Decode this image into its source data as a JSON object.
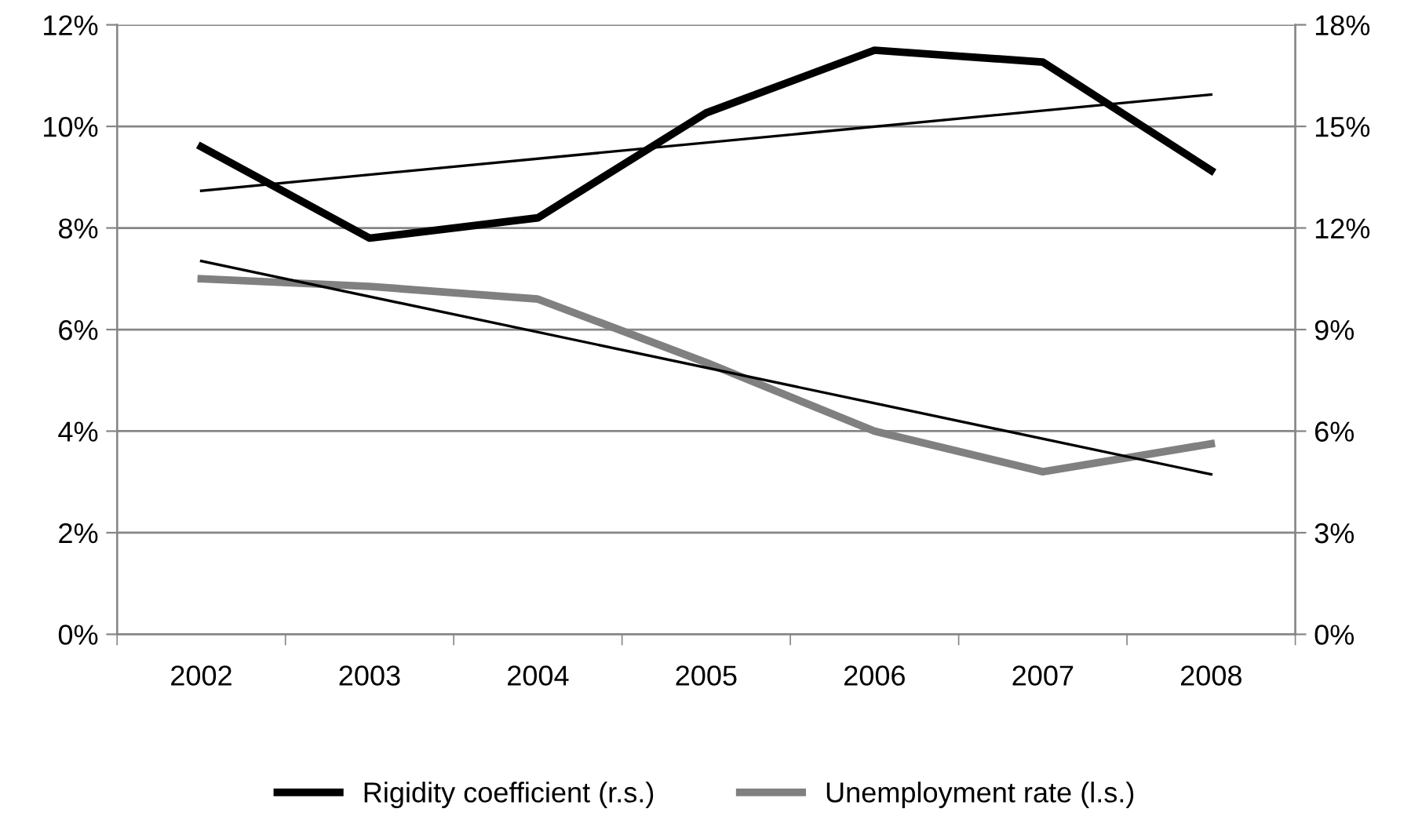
{
  "chart_data": {
    "type": "line",
    "categories": [
      "2002",
      "2003",
      "2004",
      "2005",
      "2006",
      "2007",
      "2008"
    ],
    "series": [
      {
        "name": "Rigidity coefficient (r.s.)",
        "color": "#000000",
        "axis": "y2",
        "values": [
          14.4,
          11.7,
          12.3,
          15.4,
          17.25,
          16.9,
          13.7
        ]
      },
      {
        "name": "Unemployment rate (l.s.)",
        "color": "#808080",
        "values": [
          7.0,
          6.85,
          6.6,
          5.35,
          4.0,
          3.2,
          3.75
        ]
      },
      {
        "color": "#000000",
        "axis": "y2",
        "values": [
          13.1,
          null,
          null,
          null,
          null,
          null,
          15.94
        ]
      },
      {
        "color": "#000000",
        "values": [
          7.35,
          null,
          null,
          null,
          null,
          null,
          3.15
        ]
      }
    ],
    "ylim": [
      0,
      12
    ],
    "yticks": [
      {
        "value": 0,
        "label": "0%"
      },
      {
        "value": 2,
        "label": "2%"
      },
      {
        "value": 4,
        "label": "4%"
      },
      {
        "value": 6,
        "label": "6%"
      },
      {
        "value": 8,
        "label": "8%"
      },
      {
        "value": 10,
        "label": "10%"
      },
      {
        "value": 12,
        "label": "12%"
      }
    ],
    "y2lim": [
      0,
      18
    ],
    "y2ticks": [
      {
        "value": 0,
        "label": "0%"
      },
      {
        "value": 3,
        "label": "3%"
      },
      {
        "value": 6,
        "label": "6%"
      },
      {
        "value": 9,
        "label": "9%"
      },
      {
        "value": 12,
        "label": "12%"
      },
      {
        "value": 15,
        "label": "15%"
      },
      {
        "value": 18,
        "label": "18%"
      }
    ],
    "grid": "y",
    "legend": "bottom",
    "marker": "none"
  }
}
